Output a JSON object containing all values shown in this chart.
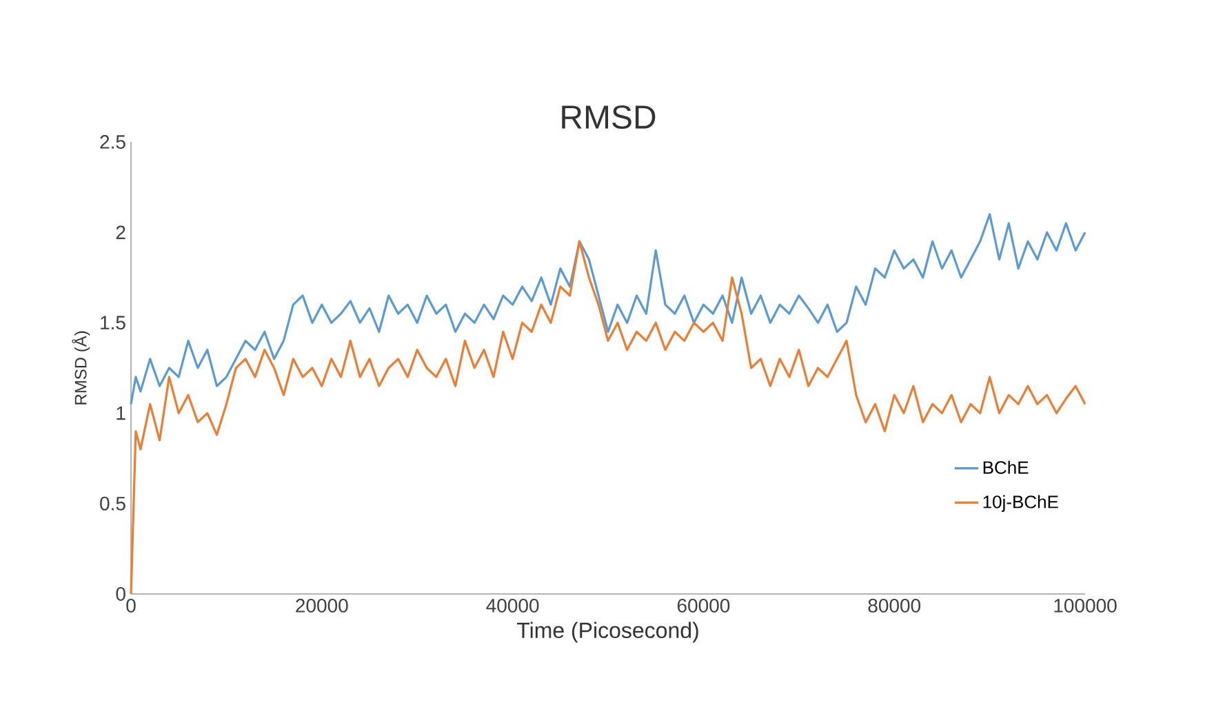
{
  "chart_data": {
    "type": "line",
    "title": "RMSD",
    "xlabel": "Time (Picosecond)",
    "ylabel": "RMSD (Å)",
    "xlim": [
      0,
      100000
    ],
    "ylim": [
      0,
      2.5
    ],
    "xticks": [
      0,
      20000,
      40000,
      60000,
      80000,
      100000
    ],
    "yticks": [
      0,
      0.5,
      1,
      1.5,
      2,
      2.5
    ],
    "legend": "right",
    "grid": false,
    "marker": "none",
    "line_style": "solid",
    "x": [
      0,
      500,
      1000,
      2000,
      3000,
      4000,
      5000,
      6000,
      7000,
      8000,
      9000,
      10000,
      11000,
      12000,
      13000,
      14000,
      15000,
      16000,
      17000,
      18000,
      19000,
      20000,
      21000,
      22000,
      23000,
      24000,
      25000,
      26000,
      27000,
      28000,
      29000,
      30000,
      31000,
      32000,
      33000,
      34000,
      35000,
      36000,
      37000,
      38000,
      39000,
      40000,
      41000,
      42000,
      43000,
      44000,
      45000,
      46000,
      47000,
      48000,
      49000,
      50000,
      51000,
      52000,
      53000,
      54000,
      55000,
      56000,
      57000,
      58000,
      59000,
      60000,
      61000,
      62000,
      63000,
      64000,
      65000,
      66000,
      67000,
      68000,
      69000,
      70000,
      71000,
      72000,
      73000,
      74000,
      75000,
      76000,
      77000,
      78000,
      79000,
      80000,
      81000,
      82000,
      83000,
      84000,
      85000,
      86000,
      87000,
      88000,
      89000,
      90000,
      91000,
      92000,
      93000,
      94000,
      95000,
      96000,
      97000,
      98000,
      99000,
      100000
    ],
    "series": [
      {
        "name": "BChE",
        "color": "#5b9bd5",
        "values": [
          1.05,
          1.2,
          1.12,
          1.3,
          1.15,
          1.25,
          1.2,
          1.4,
          1.25,
          1.35,
          1.15,
          1.2,
          1.3,
          1.4,
          1.35,
          1.45,
          1.3,
          1.4,
          1.6,
          1.65,
          1.5,
          1.6,
          1.5,
          1.55,
          1.62,
          1.5,
          1.58,
          1.45,
          1.65,
          1.55,
          1.6,
          1.5,
          1.65,
          1.55,
          1.6,
          1.45,
          1.55,
          1.5,
          1.6,
          1.52,
          1.65,
          1.6,
          1.7,
          1.62,
          1.75,
          1.6,
          1.8,
          1.7,
          1.95,
          1.85,
          1.65,
          1.45,
          1.6,
          1.5,
          1.65,
          1.55,
          1.9,
          1.6,
          1.55,
          1.65,
          1.5,
          1.6,
          1.55,
          1.65,
          1.5,
          1.75,
          1.55,
          1.65,
          1.5,
          1.6,
          1.55,
          1.65,
          1.58,
          1.5,
          1.6,
          1.45,
          1.5,
          1.7,
          1.6,
          1.8,
          1.75,
          1.9,
          1.8,
          1.85,
          1.75,
          1.95,
          1.8,
          1.9,
          1.75,
          1.85,
          1.95,
          2.1,
          1.85,
          2.05,
          1.8,
          1.95,
          1.85,
          2.0,
          1.9,
          2.05,
          1.9,
          2.0
        ]
      },
      {
        "name": "10j-BChE",
        "color": "#ed7d31",
        "values": [
          0,
          0.9,
          0.8,
          1.05,
          0.85,
          1.2,
          1.0,
          1.1,
          0.95,
          1.0,
          0.88,
          1.05,
          1.25,
          1.3,
          1.2,
          1.35,
          1.25,
          1.1,
          1.3,
          1.2,
          1.25,
          1.15,
          1.3,
          1.2,
          1.4,
          1.2,
          1.3,
          1.15,
          1.25,
          1.3,
          1.2,
          1.35,
          1.25,
          1.2,
          1.3,
          1.15,
          1.4,
          1.25,
          1.35,
          1.2,
          1.45,
          1.3,
          1.5,
          1.45,
          1.6,
          1.5,
          1.7,
          1.65,
          1.95,
          1.75,
          1.6,
          1.4,
          1.5,
          1.35,
          1.45,
          1.4,
          1.5,
          1.35,
          1.45,
          1.4,
          1.5,
          1.45,
          1.5,
          1.4,
          1.75,
          1.55,
          1.25,
          1.3,
          1.15,
          1.3,
          1.2,
          1.35,
          1.15,
          1.25,
          1.2,
          1.3,
          1.4,
          1.1,
          0.95,
          1.05,
          0.9,
          1.1,
          1.0,
          1.15,
          0.95,
          1.05,
          1.0,
          1.1,
          0.95,
          1.05,
          1.0,
          1.2,
          1.0,
          1.1,
          1.05,
          1.15,
          1.05,
          1.1,
          1.0,
          1.08,
          1.15,
          1.05
        ]
      }
    ]
  }
}
